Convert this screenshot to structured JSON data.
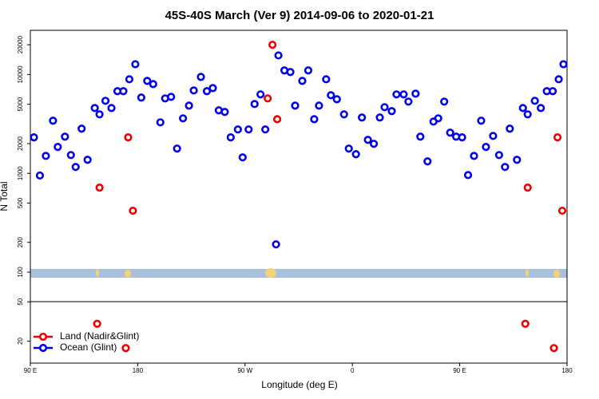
{
  "chart_data": {
    "type": "scatter",
    "title": "45S-40S March (Ver 9)   2014-09-06 to 2020-01-21",
    "x_label": "Longitude (deg E)",
    "y_label": "N Total",
    "log_y": true,
    "legend": "bottom-left",
    "xlim": [
      90,
      540
    ],
    "ylim": [
      12,
      28000
    ],
    "xticks": [
      {
        "value": 90,
        "label": "90 E"
      },
      180,
      {
        "value": 270,
        "label": "90 W"
      },
      {
        "value": 360,
        "label": "0"
      },
      {
        "value": 450,
        "label": "90 E"
      },
      {
        "value": 540,
        "label": "180"
      }
    ],
    "yticks": [
      20,
      50,
      100,
      200,
      500,
      1000,
      2000,
      5000,
      10000,
      20000
    ],
    "series": [
      {
        "name": "Land (Nadir&Glint)",
        "color": "#ee0000",
        "x": [
          148,
          172,
          176,
          289,
          293,
          297,
          507,
          532,
          536,
          146,
          170,
          505,
          529
        ],
        "values": [
          716,
          2310,
          418,
          5730,
          20000,
          3530,
          716,
          2310,
          418,
          30,
          17,
          30,
          17
        ]
      },
      {
        "name": "Ocean (Glint)",
        "color": "#0000ee",
        "x": [
          93,
          98,
          103,
          109,
          113,
          119,
          124,
          128,
          133,
          138,
          144,
          148,
          153,
          158,
          163,
          168,
          173,
          178,
          183,
          188,
          193,
          199,
          203,
          208,
          213,
          218,
          223,
          227,
          233,
          238,
          243,
          248,
          253,
          258,
          264,
          268,
          273,
          278,
          283,
          287,
          296,
          298,
          303,
          308,
          312,
          318,
          323,
          328,
          332,
          338,
          342,
          347,
          353,
          357,
          363,
          368,
          373,
          378,
          383,
          387,
          393,
          397,
          403,
          407,
          413,
          417,
          423,
          428,
          432,
          437,
          442,
          447,
          452,
          457,
          462,
          468,
          472,
          478,
          483,
          488,
          492,
          498,
          503,
          507,
          513,
          518,
          523,
          528,
          533,
          537
        ],
        "values": [
          2310,
          950,
          1500,
          3410,
          1850,
          2350,
          1530,
          1160,
          2830,
          1370,
          4580,
          3950,
          5420,
          4580,
          6780,
          6780,
          8950,
          12700,
          5840,
          8610,
          8000,
          3280,
          5730,
          5940,
          1780,
          3600,
          4840,
          6900,
          9460,
          6780,
          7290,
          4340,
          4180,
          2310,
          2780,
          1450,
          2780,
          5030,
          6290,
          2780,
          191,
          15600,
          11000,
          10600,
          4840,
          8610,
          11000,
          3530,
          4840,
          8950,
          6170,
          5620,
          3950,
          1780,
          1560,
          3670,
          2180,
          1990,
          3670,
          4670,
          4260,
          6290,
          6290,
          5320,
          6400,
          2350,
          1320,
          3340,
          3600,
          5320,
          2580,
          2350,
          2310,
          960,
          1500,
          3410,
          1850,
          2390,
          1530,
          1160,
          2830,
          1370,
          4580,
          3950,
          5420,
          4580,
          6780,
          6780,
          8950,
          12700
        ]
      }
    ]
  }
}
